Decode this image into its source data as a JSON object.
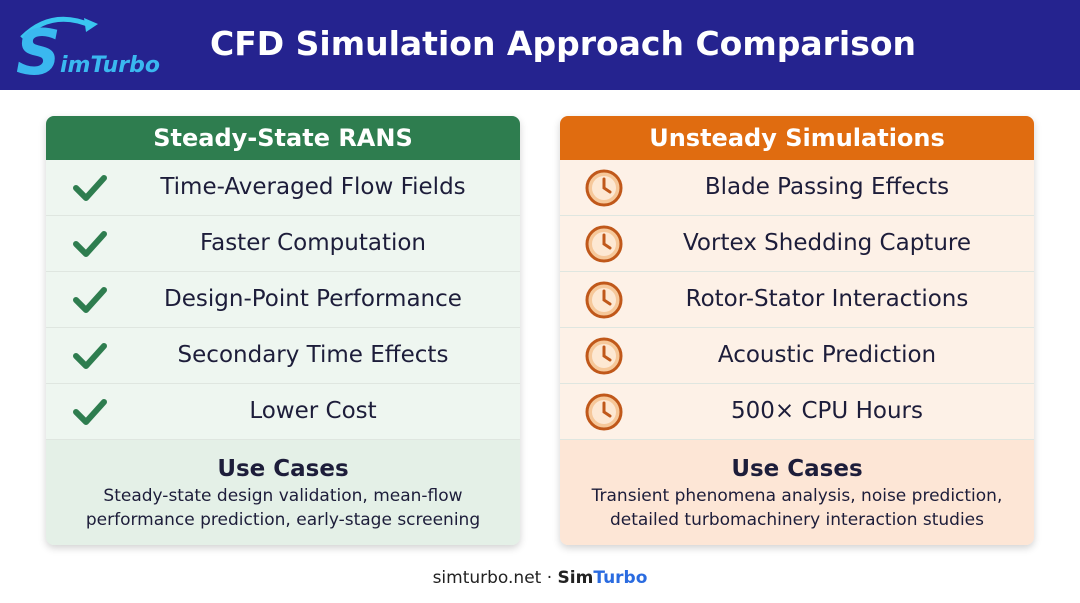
{
  "header": {
    "logo_initial": "S",
    "logo_rest": "imTurbo",
    "title": "CFD Simulation Approach Comparison"
  },
  "cards": [
    {
      "title": "Steady-State RANS",
      "items": [
        "Time-Averaged Flow Fields",
        "Faster Computation",
        "Design-Point Performance",
        "Secondary Time Effects",
        "Lower Cost"
      ],
      "use_cases_title": "Use Cases",
      "use_cases_text": "Steady-state design validation, mean-flow performance prediction, early-stage screening"
    },
    {
      "title": "Unsteady Simulations",
      "items": [
        "Blade Passing Effects",
        "Vortex Shedding Capture",
        "Rotor-Stator Interactions",
        "Acoustic Prediction",
        "500× CPU Hours"
      ],
      "use_cases_title": "Use Cases",
      "use_cases_text": "Transient phenomena analysis, noise prediction, detailed turbomachinery interaction studies"
    }
  ],
  "footer": {
    "site": "simturbo.net",
    "separator": "·",
    "brand_a": "Sim",
    "brand_b": "Turbo"
  }
}
